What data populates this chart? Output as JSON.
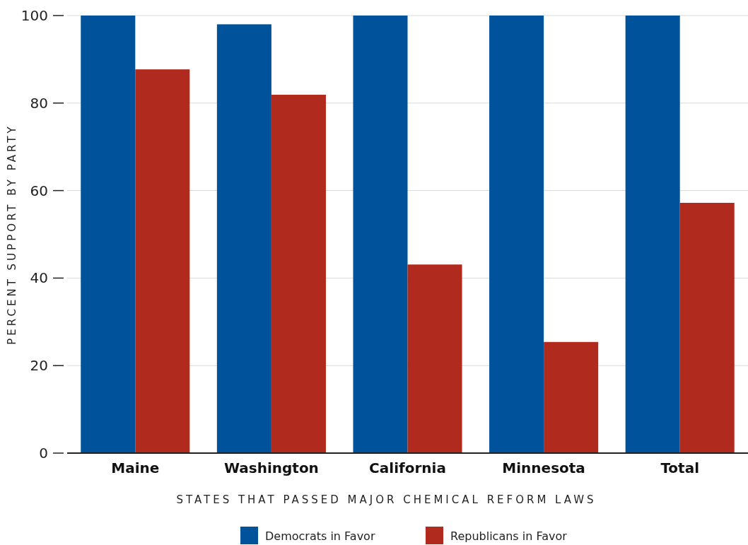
{
  "chart_data": {
    "type": "bar",
    "xlabel": "STATES THAT PASSED MAJOR CHEMICAL REFORM LAWS",
    "ylabel": "PERCENT SUPPORT BY PARTY",
    "categories": [
      "Maine",
      "Washington",
      "California",
      "Minnesota",
      "Total"
    ],
    "series": [
      {
        "name": "Democrats in Favor",
        "color": "#00539b",
        "values": [
          100,
          98,
          100,
          100,
          100
        ]
      },
      {
        "name": "Republicans in Favor",
        "color": "#b02a1e",
        "values": [
          87.7,
          81.9,
          43.1,
          25.4,
          57.2
        ]
      }
    ],
    "ylim": [
      0,
      100
    ],
    "yticks": [
      0,
      20,
      40,
      60,
      80,
      100
    ],
    "grid": "y",
    "legend": "bottom"
  }
}
